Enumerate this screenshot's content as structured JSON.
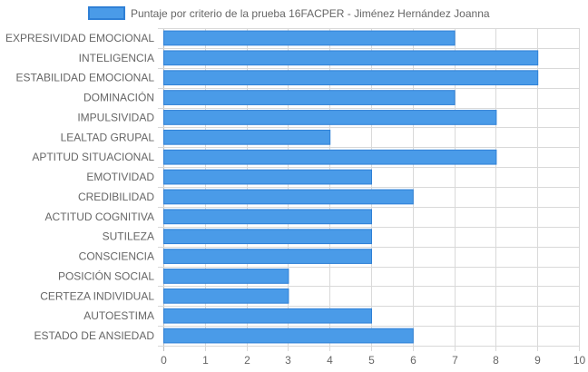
{
  "chart_data": {
    "type": "bar",
    "orientation": "horizontal",
    "categories": [
      "EXPRESIVIDAD EMOCIONAL",
      "INTELIGENCIA",
      "ESTABILIDAD EMOCIONAL",
      "DOMINACIÓN",
      "IMPULSIVIDAD",
      "LEALTAD GRUPAL",
      "APTITUD SITUACIONAL",
      "EMOTIVIDAD",
      "CREDIBILIDAD",
      "ACTITUD COGNITIVA",
      "SUTILEZA",
      "CONSCIENCIA",
      "POSICIÓN SOCIAL",
      "CERTEZA INDIVIDUAL",
      "AUTOESTIMA",
      "ESTADO DE ANSIEDAD"
    ],
    "series": [
      {
        "name": "Puntaje por criterio de la prueba 16FACPER - Jiménez Hernández Joanna",
        "values": [
          7,
          9,
          9,
          7,
          8,
          4,
          8,
          5,
          6,
          5,
          5,
          5,
          3,
          3,
          5,
          6
        ],
        "color": "#4a9be8",
        "border_color": "#2f80d6"
      }
    ],
    "xlim": [
      0,
      10
    ],
    "x_ticks": [
      "0",
      "1",
      "2",
      "3",
      "4",
      "5",
      "6",
      "7",
      "8",
      "9",
      "10"
    ],
    "grid": true,
    "grid_color": "#d9d9d9",
    "legend_position": "top",
    "text_color": "#666666"
  }
}
